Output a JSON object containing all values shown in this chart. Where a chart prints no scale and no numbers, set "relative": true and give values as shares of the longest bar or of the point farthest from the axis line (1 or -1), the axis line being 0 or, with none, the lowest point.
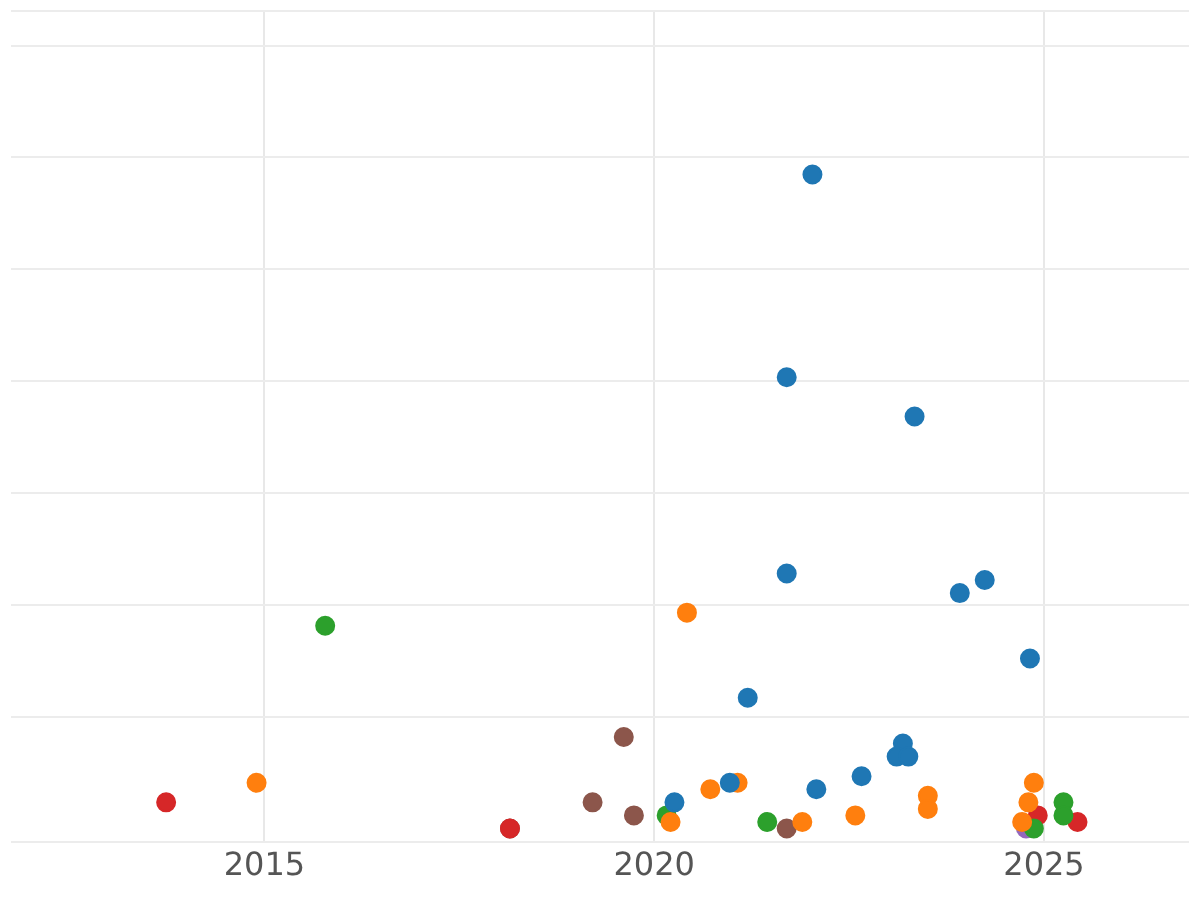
{
  "chart_data": {
    "type": "scatter",
    "relative": true,
    "grid": true,
    "legend": false,
    "marker": "circle",
    "xlim": [
      2011.75,
      2026.86
    ],
    "xticks": [
      2015,
      2020,
      2025
    ],
    "series": [
      {
        "color": "#1f77b4",
        "x": [
          2022.03,
          2021.7,
          2023.34,
          2021.7,
          2023.92,
          2024.24,
          2024.82,
          2021.2,
          2023.19,
          2023.11,
          2023.26,
          2022.66,
          2022.08,
          2020.97,
          2020.26
        ],
        "values": [
          1.0,
          0.69,
          0.63,
          0.39,
          0.36,
          0.38,
          0.26,
          0.2,
          0.13,
          0.11,
          0.11,
          0.08,
          0.06,
          0.07,
          0.04
        ]
      },
      {
        "color": "#ff7f0e",
        "x": [
          2020.42,
          2014.9,
          2020.72,
          2021.07,
          2020.21,
          2021.9,
          2022.58,
          2023.51,
          2023.51,
          2024.87,
          2024.8,
          2024.72
        ],
        "values": [
          0.33,
          0.07,
          0.06,
          0.07,
          0.01,
          0.01,
          0.02,
          0.05,
          0.03,
          0.07,
          0.04,
          0.01
        ]
      },
      {
        "color": "#2ca02c",
        "x": [
          2015.78,
          2020.16,
          2021.45,
          2025.25,
          2025.25,
          2024.87
        ],
        "values": [
          0.31,
          0.02,
          0.01,
          0.04,
          0.02,
          0.0
        ]
      },
      {
        "color": "#d62728",
        "x": [
          2013.74,
          2018.15,
          2024.92,
          2025.43
        ],
        "values": [
          0.04,
          0.0,
          0.02,
          0.01
        ]
      },
      {
        "color": "#8c564b",
        "x": [
          2019.61,
          2019.21,
          2019.74,
          2018.15,
          2021.7
        ],
        "values": [
          0.14,
          0.04,
          0.02,
          0.0,
          0.0
        ]
      },
      {
        "color": "#9467bd",
        "x": [
          2024.77
        ],
        "values": [
          0.0
        ]
      }
    ]
  }
}
